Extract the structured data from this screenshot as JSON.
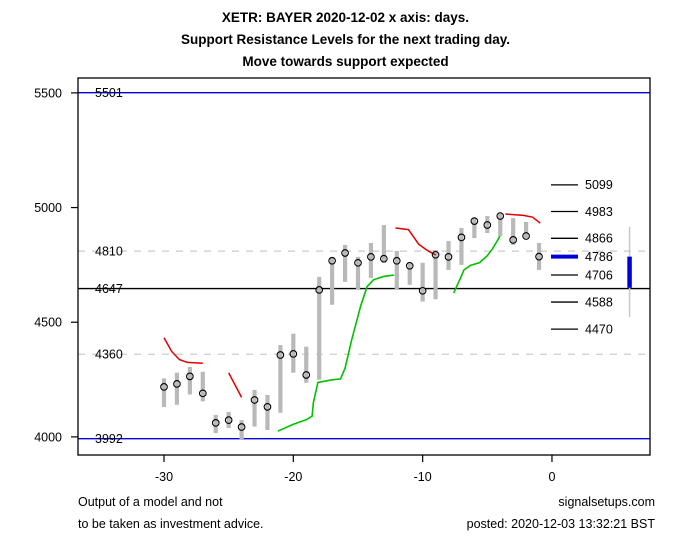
{
  "header": {
    "title_line1": "XETR: BAYER 2020-12-02 x axis: days.",
    "title_line2": "Support Resistance Levels for the next trading day.",
    "title_line3": "Move towards support expected"
  },
  "footer": {
    "disclaimer_line1": "Output of a model and not",
    "disclaimer_line2": "to be taken as investment advice.",
    "site": "signalsetups.com",
    "posted": "posted: 2020-12-03 13:32:21 BST"
  },
  "chart_data": {
    "type": "candlestick",
    "title": "XETR: BAYER 2020-12-02 Support Resistance Levels",
    "xlabel": "days",
    "ylabel": "",
    "x_axis": {
      "ticks": [
        -30,
        -20,
        -10,
        0
      ],
      "range": [
        -36.65,
        7.58
      ]
    },
    "y_axis": {
      "ticks": [
        4000,
        4500,
        5000,
        5500
      ],
      "range": [
        3921,
        5565
      ]
    },
    "grid": "off",
    "colors": {
      "bar": "#b9b9b9",
      "close_marker": "#000000",
      "support_line": "#00c000",
      "resistance_line": "#e00000",
      "level_blue": "#0000dd",
      "level_gray": "#d2d2d2",
      "level_black": "#000000",
      "forecast_blue": "#0000dd",
      "forecast_gray": "#c8c8c8"
    },
    "levels": [
      {
        "value": 5501,
        "label": "5501",
        "color": "blue",
        "style": "solid"
      },
      {
        "value": 4810,
        "label": "4810",
        "color": "gray",
        "style": "dashed"
      },
      {
        "value": 4647,
        "label": "4647",
        "color": "black",
        "style": "solid"
      },
      {
        "value": 4360,
        "label": "4360",
        "color": "gray",
        "style": "dashed"
      },
      {
        "value": 3992,
        "label": "3992",
        "color": "blue",
        "style": "solid"
      }
    ],
    "right_levels": [
      {
        "value": 5099,
        "label": "5099",
        "emphasis": false
      },
      {
        "value": 4983,
        "label": "4983",
        "emphasis": false
      },
      {
        "value": 4866,
        "label": "4866",
        "emphasis": false
      },
      {
        "value": 4786,
        "label": "4786",
        "emphasis": true
      },
      {
        "value": 4706,
        "label": "4706",
        "emphasis": false
      },
      {
        "value": 4588,
        "label": "4588",
        "emphasis": false
      },
      {
        "value": 4470,
        "label": "4470",
        "emphasis": false
      }
    ],
    "bars": [
      {
        "day": -30,
        "low": 4130,
        "high": 4255,
        "close": 4218
      },
      {
        "day": -29,
        "low": 4140,
        "high": 4280,
        "close": 4231
      },
      {
        "day": -28,
        "low": 4185,
        "high": 4305,
        "close": 4264
      },
      {
        "day": -27,
        "low": 4155,
        "high": 4284,
        "close": 4190
      },
      {
        "day": -26,
        "low": 4017,
        "high": 4096,
        "close": 4061
      },
      {
        "day": -25,
        "low": 4039,
        "high": 4109,
        "close": 4073
      },
      {
        "day": -24,
        "low": 3990,
        "high": 4073,
        "close": 4043
      },
      {
        "day": -23,
        "low": 4045,
        "high": 4205,
        "close": 4161
      },
      {
        "day": -22,
        "low": 4030,
        "high": 4183,
        "close": 4131
      },
      {
        "day": -21,
        "low": 4105,
        "high": 4400,
        "close": 4357
      },
      {
        "day": -20,
        "low": 4280,
        "high": 4450,
        "close": 4362
      },
      {
        "day": -19,
        "low": 4236,
        "high": 4393,
        "close": 4270
      },
      {
        "day": -18,
        "low": 4249,
        "high": 4698,
        "close": 4641
      },
      {
        "day": -17,
        "low": 4576,
        "high": 4780,
        "close": 4768
      },
      {
        "day": -16,
        "low": 4676,
        "high": 4837,
        "close": 4802
      },
      {
        "day": -15,
        "low": 4641,
        "high": 4785,
        "close": 4759
      },
      {
        "day": -14,
        "low": 4693,
        "high": 4846,
        "close": 4785
      },
      {
        "day": -13,
        "low": 4759,
        "high": 4924,
        "close": 4777
      },
      {
        "day": -12,
        "low": 4641,
        "high": 4811,
        "close": 4768
      },
      {
        "day": -11,
        "low": 4663,
        "high": 4763,
        "close": 4746
      },
      {
        "day": -10,
        "low": 4590,
        "high": 4759,
        "close": 4637
      },
      {
        "day": -9,
        "low": 4600,
        "high": 4815,
        "close": 4794
      },
      {
        "day": -8,
        "low": 4728,
        "high": 4854,
        "close": 4785
      },
      {
        "day": -7,
        "low": 4750,
        "high": 4911,
        "close": 4870
      },
      {
        "day": -6,
        "low": 4867,
        "high": 4954,
        "close": 4941
      },
      {
        "day": -5,
        "low": 4889,
        "high": 4963,
        "close": 4924
      },
      {
        "day": -4,
        "low": 4876,
        "high": 4976,
        "close": 4963
      },
      {
        "day": -3,
        "low": 4837,
        "high": 4954,
        "close": 4859
      },
      {
        "day": -2,
        "low": 4867,
        "high": 4937,
        "close": 4876
      },
      {
        "day": -1,
        "low": 4728,
        "high": 4846,
        "close": 4786
      }
    ],
    "green_segments": [
      [
        [
          -21.2,
          4025
        ],
        [
          -20.0,
          4055
        ],
        [
          -19.0,
          4075
        ],
        [
          -18.55,
          4090
        ],
        [
          -18.45,
          4150
        ],
        [
          -18.1,
          4237
        ],
        [
          -17.0,
          4249
        ],
        [
          -16.35,
          4253
        ],
        [
          -16.0,
          4300
        ],
        [
          -15.5,
          4420
        ],
        [
          -14.8,
          4570
        ],
        [
          -14.3,
          4655
        ],
        [
          -13.8,
          4685
        ],
        [
          -13.0,
          4700
        ],
        [
          -12.2,
          4706
        ]
      ],
      [
        [
          -7.6,
          4628
        ],
        [
          -7.1,
          4690
        ],
        [
          -6.8,
          4728
        ],
        [
          -6.3,
          4748
        ],
        [
          -5.6,
          4760
        ],
        [
          -5.0,
          4790
        ],
        [
          -4.6,
          4820
        ],
        [
          -4.2,
          4858
        ],
        [
          -4.0,
          4880
        ]
      ]
    ],
    "red_segments": [
      [
        [
          -30.0,
          4432
        ],
        [
          -29.4,
          4372
        ],
        [
          -28.8,
          4337
        ],
        [
          -28.2,
          4325
        ],
        [
          -27.0,
          4321
        ]
      ],
      [
        [
          -25.0,
          4279
        ],
        [
          -24.0,
          4172
        ]
      ],
      [
        [
          -12.1,
          4911
        ],
        [
          -11.1,
          4904
        ],
        [
          -10.3,
          4840
        ],
        [
          -9.6,
          4812
        ],
        [
          -9.0,
          4793
        ]
      ],
      [
        [
          -3.6,
          4972
        ],
        [
          -2.2,
          4966
        ],
        [
          -1.5,
          4958
        ],
        [
          -0.9,
          4932
        ]
      ]
    ],
    "forecast_marker": {
      "day": 6.0,
      "gray_range": [
        4523,
        4916
      ],
      "blue_range": [
        4650,
        4786
      ]
    }
  }
}
